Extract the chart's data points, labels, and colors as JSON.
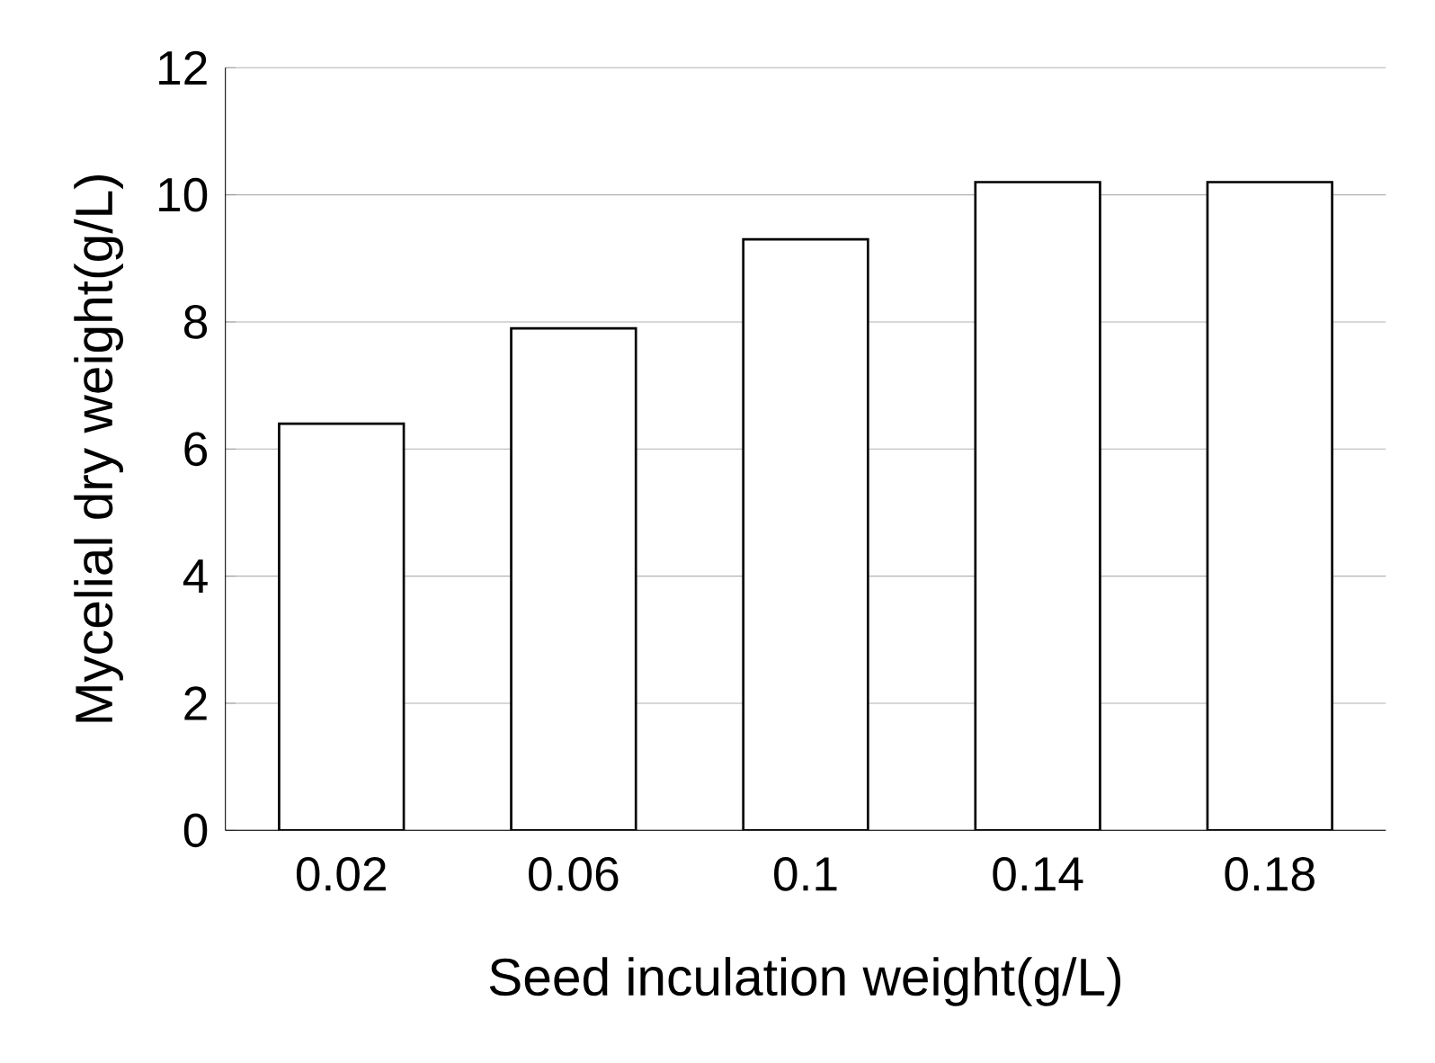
{
  "chart_data": {
    "type": "bar",
    "xlabel": "Seed inculation weight(g/L)",
    "ylabel": "Mycelial dry weight(g/L)",
    "categories": [
      "0.02",
      "0.06",
      "0.1",
      "0.14",
      "0.18"
    ],
    "values": [
      6.4,
      7.9,
      9.3,
      10.2,
      10.2
    ],
    "color": "#ffffff",
    "ylim": [
      0,
      12
    ],
    "yticks": [
      0,
      2,
      4,
      6,
      8,
      10,
      12
    ],
    "grid": "y"
  }
}
